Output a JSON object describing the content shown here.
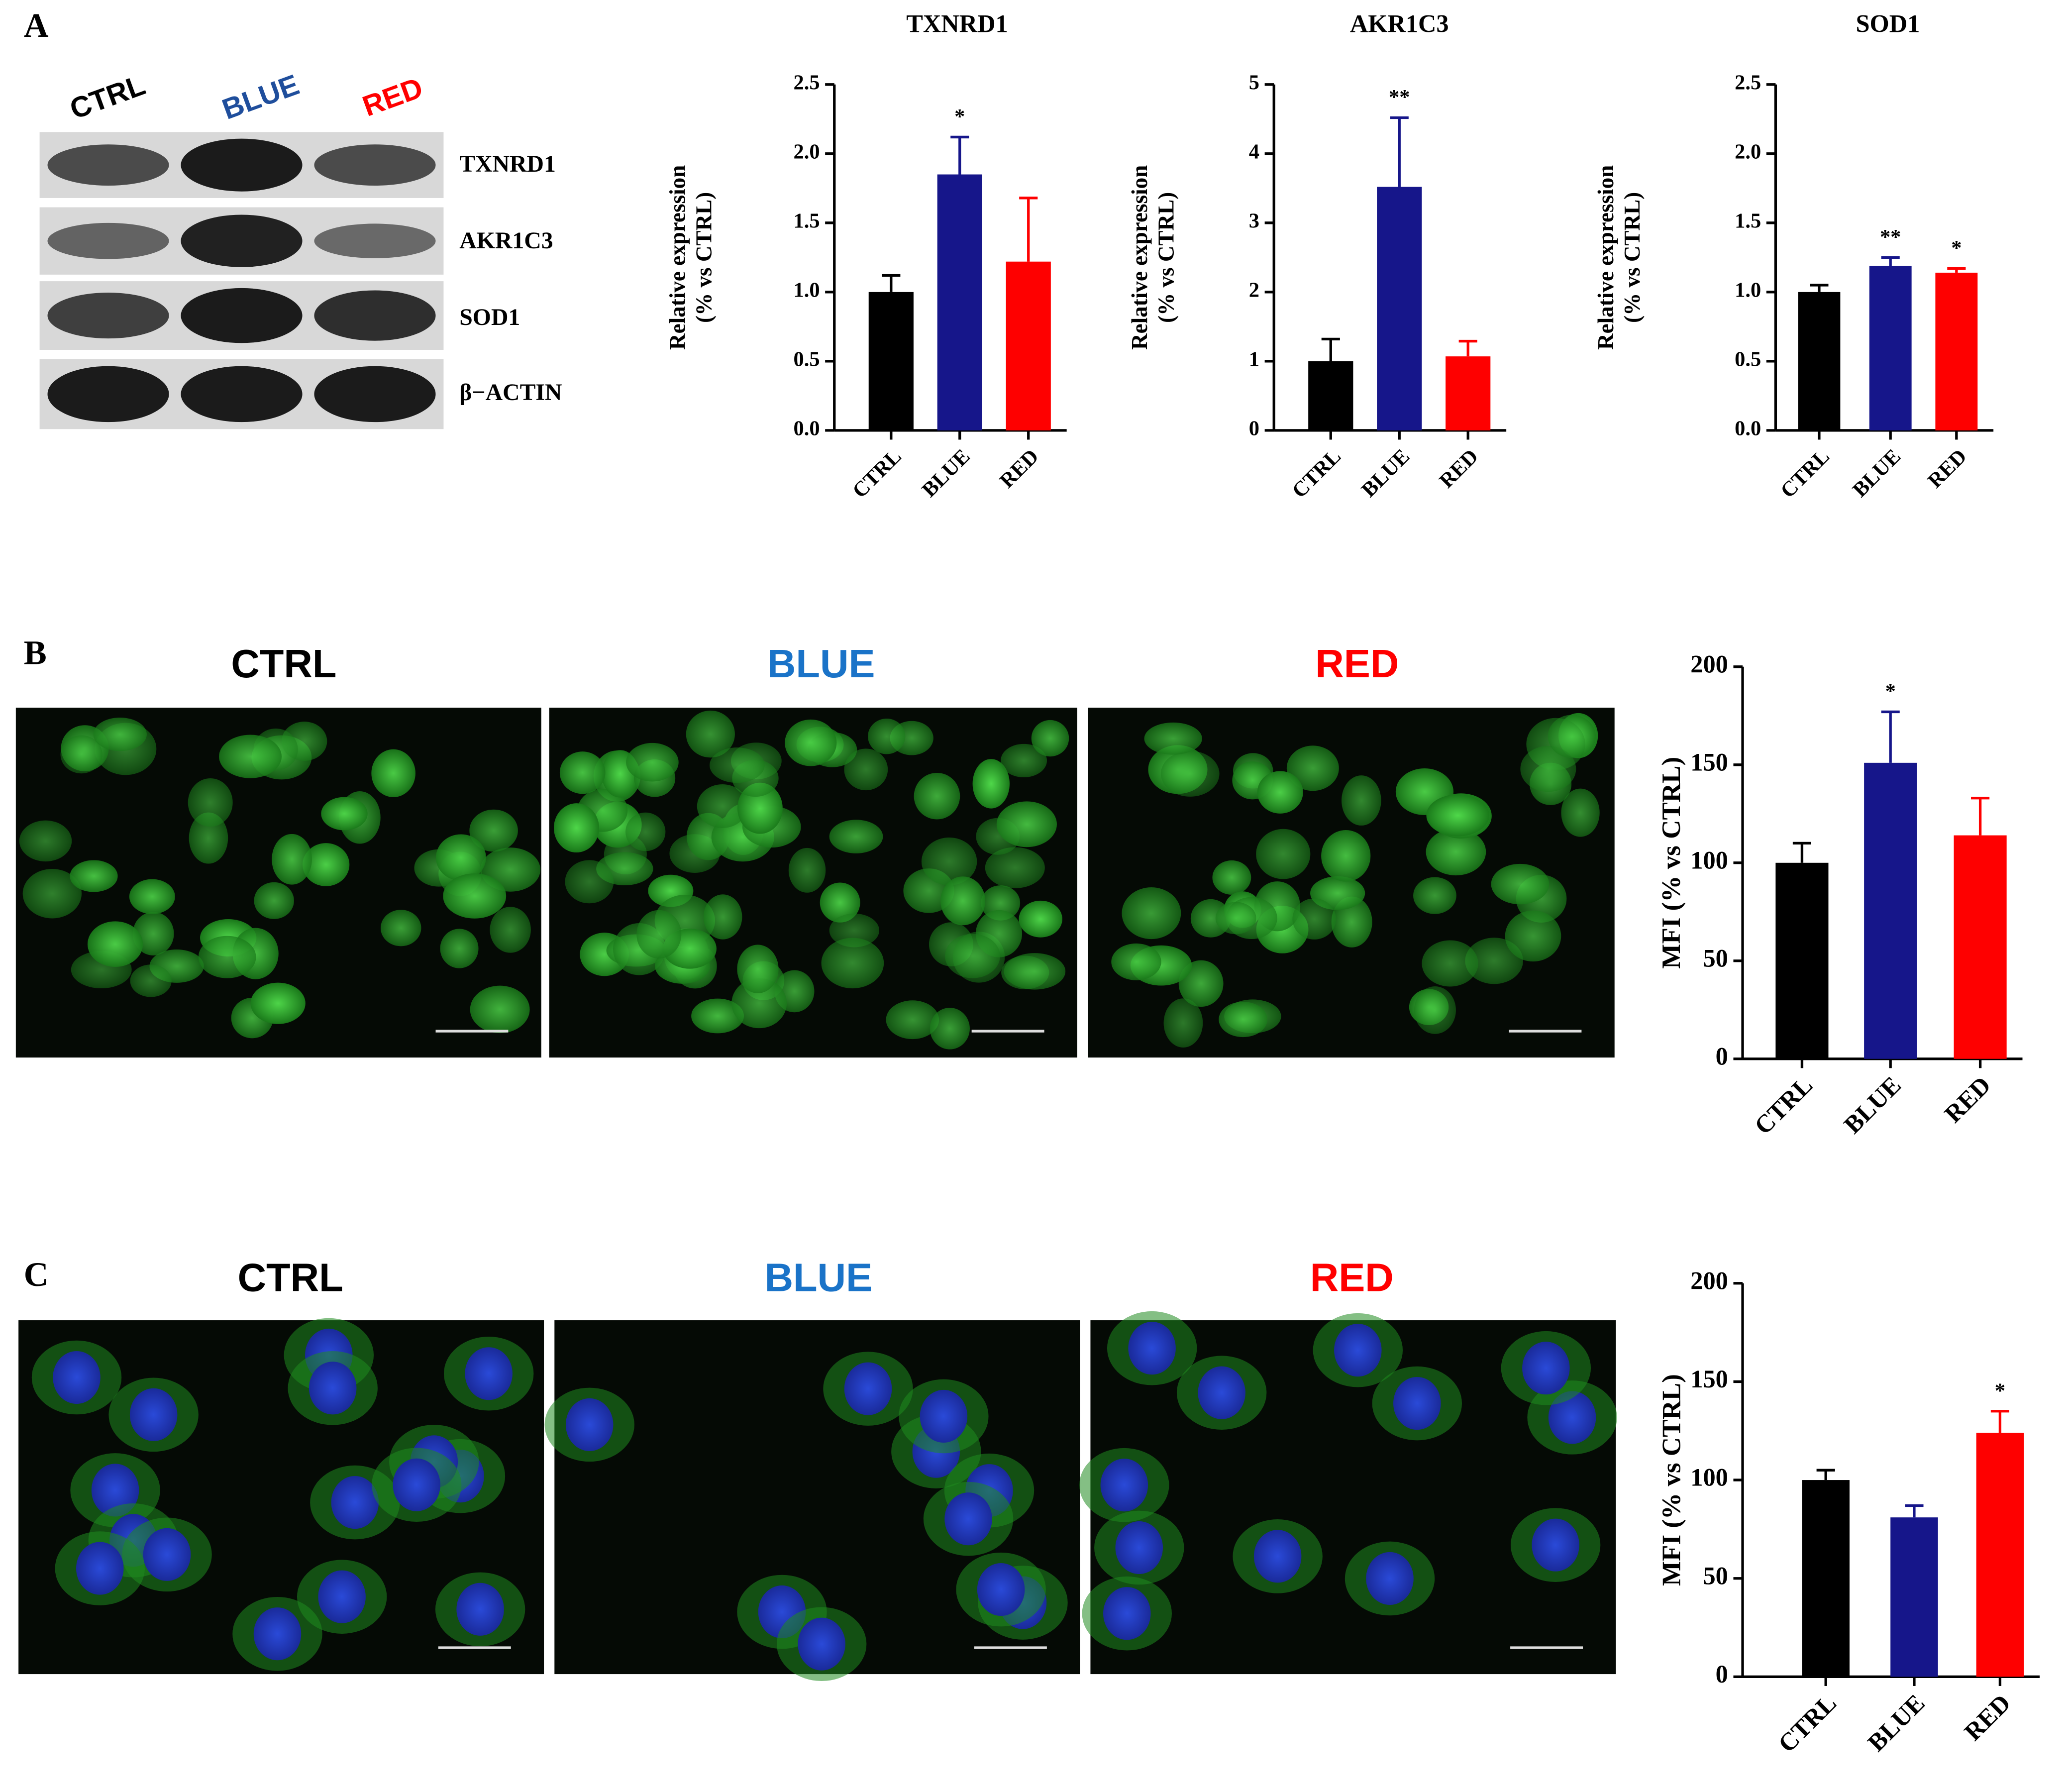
{
  "panels": [
    "A",
    "B",
    "C"
  ],
  "blot": {
    "lanes": [
      "CTRL",
      "BLUE",
      "RED"
    ],
    "bands": [
      "TXNRD1",
      "AKR1C3",
      "SOD1",
      "β−ACTIN"
    ]
  },
  "images_b": [
    "CTRL",
    "BLUE",
    "RED"
  ],
  "images_c": [
    "CTRL",
    "BLUE",
    "RED"
  ],
  "chart_data": [
    {
      "type": "bar",
      "title": "TXNRD1",
      "ylabel": [
        "Relative expression",
        "(% vs CTRL)"
      ],
      "categories": [
        "CTRL",
        "BLUE",
        "RED"
      ],
      "values": [
        1.0,
        1.85,
        1.22
      ],
      "errors": [
        0.12,
        0.27,
        0.46
      ],
      "colors": [
        "#000000",
        "#16168a",
        "#fe0000"
      ],
      "significance": [
        null,
        "*",
        null
      ],
      "ylim": [
        0,
        2.5
      ],
      "yticks": [
        {
          "value": 0,
          "label": "0.0"
        },
        0.5,
        {
          "value": 1,
          "label": "1.0"
        },
        1.5,
        {
          "value": 2,
          "label": "2.0"
        },
        2.5
      ]
    },
    {
      "type": "bar",
      "title": "AKR1C3",
      "ylabel": [
        "Relative expression",
        "(% vs CTRL)"
      ],
      "categories": [
        "CTRL",
        "BLUE",
        "RED"
      ],
      "values": [
        1.0,
        3.52,
        1.07
      ],
      "errors": [
        0.32,
        1.0,
        0.22
      ],
      "colors": [
        "#000000",
        "#16168a",
        "#fe0000"
      ],
      "significance": [
        null,
        "**",
        null
      ],
      "ylim": [
        0,
        5
      ],
      "yticks": [
        0,
        1,
        2,
        3,
        4,
        5
      ]
    },
    {
      "type": "bar",
      "title": "SOD1",
      "ylabel": [
        "Relative expression",
        "(% vs CTRL)"
      ],
      "categories": [
        "CTRL",
        "BLUE",
        "RED"
      ],
      "values": [
        1.0,
        1.19,
        1.14
      ],
      "errors": [
        0.05,
        0.06,
        0.03
      ],
      "colors": [
        "#000000",
        "#16168a",
        "#fe0000"
      ],
      "significance": [
        null,
        "**",
        "*"
      ],
      "ylim": [
        0,
        2.5
      ],
      "yticks": [
        {
          "value": 0,
          "label": "0.0"
        },
        0.5,
        {
          "value": 1,
          "label": "1.0"
        },
        1.5,
        {
          "value": 2,
          "label": "2.0"
        },
        2.5
      ]
    },
    {
      "type": "bar",
      "ylabel": [
        "MFI (% vs CTRL)"
      ],
      "categories": [
        "CTRL",
        "BLUE",
        "RED"
      ],
      "values": [
        100,
        151,
        114
      ],
      "errors": [
        10,
        26,
        19
      ],
      "colors": [
        "#000000",
        "#16168a",
        "#fe0000"
      ],
      "significance": [
        null,
        "*",
        null
      ],
      "ylim": [
        0,
        200
      ],
      "yticks": [
        0,
        50,
        100,
        150,
        200
      ]
    },
    {
      "type": "bar",
      "ylabel": [
        "MFI (% vs CTRL)"
      ],
      "categories": [
        "CTRL",
        "BLUE",
        "RED"
      ],
      "values": [
        100,
        81,
        124
      ],
      "errors": [
        5,
        6,
        11
      ],
      "colors": [
        "#000000",
        "#16168a",
        "#fe0000"
      ],
      "significance": [
        null,
        null,
        "*"
      ],
      "ylim": [
        0,
        200
      ],
      "yticks": [
        0,
        50,
        100,
        150,
        200
      ]
    }
  ]
}
